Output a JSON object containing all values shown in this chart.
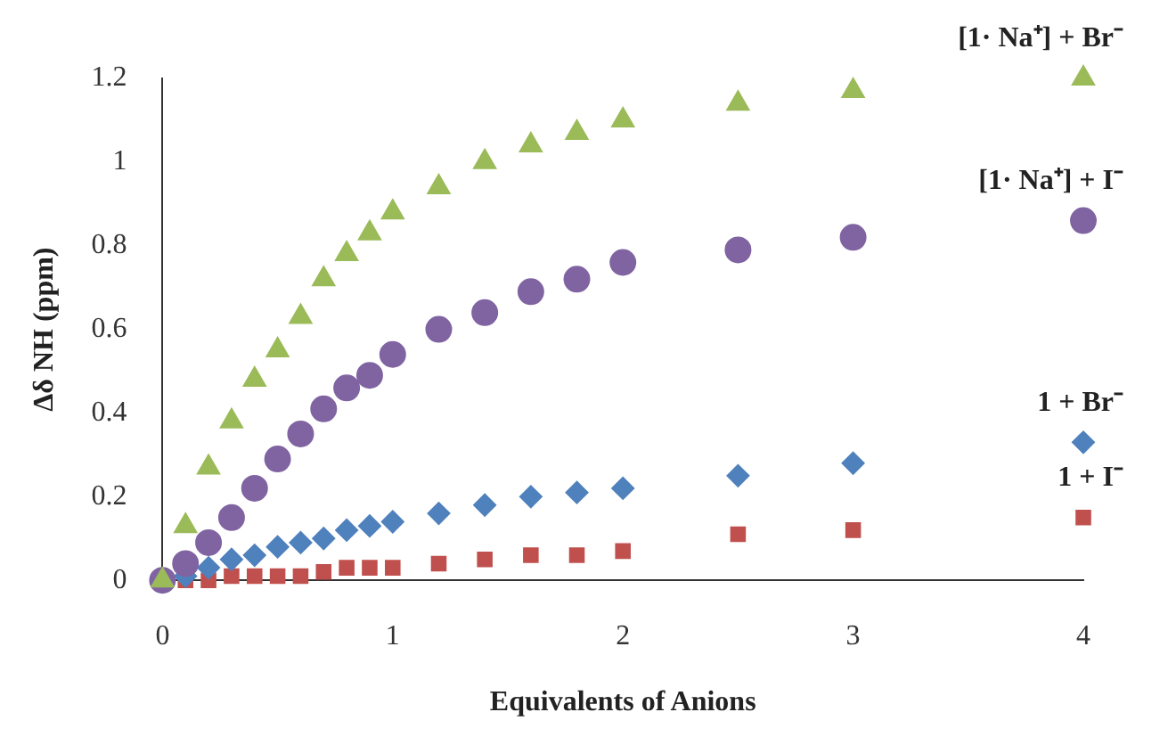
{
  "chart_data": {
    "type": "scatter",
    "xlabel": "Equivalents of Anions",
    "ylabel": "Δδ NH (ppm)",
    "x": [
      0,
      0.1,
      0.2,
      0.3,
      0.4,
      0.5,
      0.6,
      0.7,
      0.8,
      0.9,
      1.0,
      1.2,
      1.4,
      1.6,
      1.8,
      2.0,
      2.5,
      3.0,
      4.0
    ],
    "series": [
      {
        "name": "[1· Na⁺] + Br⁻",
        "color": "#9bbb59",
        "marker": "triangle",
        "values": [
          0,
          0.13,
          0.27,
          0.38,
          0.48,
          0.55,
          0.63,
          0.72,
          0.78,
          0.83,
          0.88,
          0.94,
          1.0,
          1.04,
          1.07,
          1.1,
          1.14,
          1.17,
          1.2
        ]
      },
      {
        "name": "[1· Na⁺] + I⁻",
        "color": "#8064a2",
        "marker": "circle",
        "values": [
          0,
          0.04,
          0.09,
          0.15,
          0.22,
          0.29,
          0.35,
          0.41,
          0.46,
          0.49,
          0.54,
          0.6,
          0.64,
          0.69,
          0.72,
          0.76,
          0.79,
          0.82,
          0.86
        ]
      },
      {
        "name": "1 + Br⁻",
        "color": "#4f81bd",
        "marker": "diamond",
        "values": [
          null,
          0.01,
          0.03,
          0.05,
          0.06,
          0.08,
          0.09,
          0.1,
          0.12,
          0.13,
          0.14,
          0.16,
          0.18,
          0.2,
          0.21,
          0.22,
          0.25,
          0.28,
          0.33
        ]
      },
      {
        "name": "1 + I⁻",
        "color": "#c0504d",
        "marker": "square",
        "values": [
          null,
          0,
          0,
          0.01,
          0.01,
          0.01,
          0.01,
          0.02,
          0.03,
          0.03,
          0.03,
          0.04,
          0.05,
          0.06,
          0.06,
          0.07,
          0.11,
          0.12,
          0.15
        ]
      }
    ],
    "xlim": [
      0,
      4
    ],
    "xticks": [
      0,
      1,
      2,
      3,
      4
    ],
    "ylim": [
      0,
      1.2
    ],
    "yticks": [
      0,
      0.2,
      0.4,
      0.6,
      0.8,
      {
        "value": 1,
        "label": "1"
      },
      1.2
    ],
    "grid": false,
    "legend": false
  }
}
